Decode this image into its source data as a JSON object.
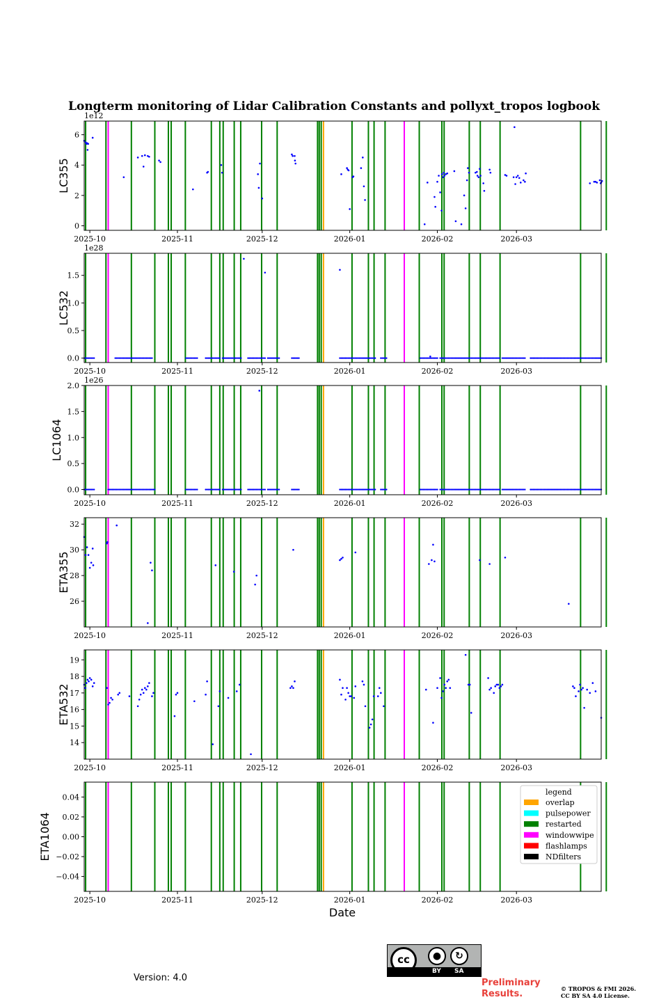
{
  "title": "Longterm monitoring of Lidar Calibration Constants and pollyxt_tropos logbook",
  "xlabel": "Date",
  "version_text": "Version: 4.0",
  "preliminary_text": "Preliminary\nResults.",
  "copyright_line1": "© TROPOS & FMI 2026.",
  "copyright_line2": "CC BY SA 4.0 License.",
  "license_badge": {
    "cc": "cc",
    "by": "BY",
    "sa": "SA"
  },
  "colors": {
    "points": "#0000ff",
    "overlap": "#ffa500",
    "pulsepower": "#00ffff",
    "restarted": "#008000",
    "windowwipe": "#ff00ff",
    "flashlamps": "#ff0000",
    "NDfilters": "#000000"
  },
  "legend": {
    "title": "legend",
    "entries": [
      {
        "label": "overlap",
        "color": "#ffa500"
      },
      {
        "label": "pulsepower",
        "color": "#00ffff"
      },
      {
        "label": "restarted",
        "color": "#008000"
      },
      {
        "label": "windowwipe",
        "color": "#ff00ff"
      },
      {
        "label": "flashlamps",
        "color": "#ff0000"
      },
      {
        "label": "NDfilters",
        "color": "#000000"
      }
    ]
  },
  "chart_data": {
    "type": "scatter",
    "x_range_days": [
      -2,
      181
    ],
    "x_origin": "2025-10-01",
    "x_ticks": [
      {
        "day": 0,
        "label": "2025-10"
      },
      {
        "day": 31,
        "label": "2025-11"
      },
      {
        "day": 61,
        "label": "2025-12"
      },
      {
        "day": 92,
        "label": "2026-01"
      },
      {
        "day": 123,
        "label": "2026-02"
      },
      {
        "day": 151,
        "label": "2026-03"
      }
    ],
    "events": {
      "restarted": [
        -1.5,
        5.7,
        14.7,
        23,
        27.8,
        28.8,
        33.8,
        43,
        46,
        47.2,
        51.1,
        53.4,
        60.8,
        66.3,
        80.6,
        81.2,
        81.9,
        92.8,
        98.6,
        100.6,
        104.5,
        116.6,
        124.6,
        125.4,
        134.3,
        138.2,
        145.2,
        173.7,
        182.8
      ],
      "windowwipe": [
        6.5,
        111.3
      ],
      "overlap": [
        82.7
      ],
      "flashlamps": [],
      "pulsepower": [],
      "NDfilters": []
    },
    "panels": [
      {
        "ylabel": "LC355",
        "exponent": "1e12",
        "ylim": [
          -0.3,
          6.9
        ],
        "yticks": [
          0,
          2,
          4,
          6
        ],
        "ytick_labels": [
          "0",
          "2",
          "4",
          "6"
        ],
        "points": [
          [
            -2,
            5.6
          ],
          [
            -1.5,
            5.5
          ],
          [
            -1.2,
            5.4
          ],
          [
            -1,
            5.45
          ],
          [
            -0.6,
            5.4
          ],
          [
            -0.8,
            5.0
          ],
          [
            1,
            5.8
          ],
          [
            12,
            3.2
          ],
          [
            17,
            4.5
          ],
          [
            18.5,
            4.6
          ],
          [
            19,
            3.9
          ],
          [
            19.5,
            4.65
          ],
          [
            20.5,
            4.6
          ],
          [
            21,
            4.55
          ],
          [
            24.5,
            4.3
          ],
          [
            25,
            4.2
          ],
          [
            36.5,
            2.4
          ],
          [
            41.5,
            3.5
          ],
          [
            41.8,
            3.55
          ],
          [
            46.5,
            4.0
          ],
          [
            46.8,
            3.5
          ],
          [
            59.5,
            3.4
          ],
          [
            59.8,
            2.5
          ],
          [
            60.2,
            4.1
          ],
          [
            61,
            1.8
          ],
          [
            71.5,
            4.7
          ],
          [
            71.8,
            4.6
          ],
          [
            72.5,
            4.6
          ],
          [
            72.6,
            4.3
          ],
          [
            72.8,
            4.1
          ],
          [
            89,
            3.4
          ],
          [
            91,
            3.8
          ],
          [
            91.3,
            3.7
          ],
          [
            91.6,
            3.65
          ],
          [
            92,
            1.1
          ],
          [
            93,
            3.2
          ],
          [
            93.3,
            3.25
          ],
          [
            96,
            3.8
          ],
          [
            96.6,
            4.5
          ],
          [
            97,
            2.6
          ],
          [
            97.4,
            1.7
          ],
          [
            118.5,
            0.1
          ],
          [
            119.5,
            2.85
          ],
          [
            122,
            1.9
          ],
          [
            122.3,
            1.25
          ],
          [
            123,
            2.9
          ],
          [
            123.5,
            3.3
          ],
          [
            124,
            2.2
          ],
          [
            124.5,
            1.0
          ],
          [
            124.7,
            3.4
          ],
          [
            125,
            3.2
          ],
          [
            125.3,
            3.5
          ],
          [
            125.5,
            3.3
          ],
          [
            126,
            3.4
          ],
          [
            126.5,
            3.45
          ],
          [
            129,
            3.6
          ],
          [
            129.5,
            0.3
          ],
          [
            131.5,
            0.1
          ],
          [
            132.5,
            2.0
          ],
          [
            133,
            1.15
          ],
          [
            133.5,
            3.0
          ],
          [
            133.8,
            3.8
          ],
          [
            134.2,
            3.5
          ],
          [
            136.5,
            3.5
          ],
          [
            137,
            3.55
          ],
          [
            137.2,
            3.3
          ],
          [
            137.6,
            3.2
          ],
          [
            138,
            3.75
          ],
          [
            138.3,
            3.3
          ],
          [
            139.3,
            2.8
          ],
          [
            139.6,
            2.3
          ],
          [
            141.5,
            3.7
          ],
          [
            141.8,
            3.5
          ],
          [
            147,
            3.35
          ],
          [
            147.5,
            3.3
          ],
          [
            150,
            3.2
          ],
          [
            150.3,
            6.5
          ],
          [
            150.6,
            2.75
          ],
          [
            151,
            3.2
          ],
          [
            151.5,
            3.3
          ],
          [
            152,
            3.15
          ],
          [
            152.5,
            2.85
          ],
          [
            153.5,
            3.0
          ],
          [
            154,
            2.9
          ],
          [
            154.3,
            3.45
          ],
          [
            177,
            2.8
          ],
          [
            178.5,
            2.9
          ],
          [
            179,
            2.9
          ],
          [
            179.5,
            2.85
          ],
          [
            180.5,
            3.0
          ],
          [
            180.8,
            2.8
          ],
          [
            181,
            2.85
          ],
          [
            181.3,
            2.95
          ]
        ]
      },
      {
        "ylabel": "LC532",
        "exponent": "1e28",
        "ylim": [
          -0.08,
          1.9
        ],
        "yticks": [
          0,
          0.5,
          1.0,
          1.5
        ],
        "ytick_labels": [
          "0.0",
          "0.5",
          "1.0",
          "1.5"
        ],
        "points": [
          [
            54.5,
            1.8
          ],
          [
            62,
            1.55
          ],
          [
            88.5,
            1.6
          ],
          [
            120.5,
            0.03
          ]
        ],
        "baseline_runs": [
          [
            -2,
            1.5
          ],
          [
            9,
            22
          ],
          [
            34,
            38
          ],
          [
            41,
            46
          ],
          [
            47,
            53.5
          ],
          [
            56,
            62
          ],
          [
            63,
            67
          ],
          [
            71.5,
            74
          ],
          [
            88.5,
            101
          ],
          [
            103,
            105
          ],
          [
            117,
            123
          ],
          [
            124,
            145
          ],
          [
            146,
            154
          ],
          [
            156,
            181
          ]
        ]
      },
      {
        "ylabel": "LC1064",
        "exponent": "1e26",
        "ylim": [
          -0.1,
          2.0
        ],
        "yticks": [
          0,
          0.5,
          1.0,
          1.5,
          2.0
        ],
        "ytick_labels": [
          "0.0",
          "0.5",
          "1.0",
          "1.5",
          "2.0"
        ],
        "points": [
          [
            60,
            1.9
          ]
        ],
        "baseline_runs": [
          [
            -2,
            1.5
          ],
          [
            6.5,
            23
          ],
          [
            34,
            38
          ],
          [
            41,
            46
          ],
          [
            47,
            53.5
          ],
          [
            56,
            62
          ],
          [
            63,
            67
          ],
          [
            71.5,
            74
          ],
          [
            88.5,
            101
          ],
          [
            103,
            105
          ],
          [
            117,
            123
          ],
          [
            124,
            145
          ],
          [
            146,
            154
          ],
          [
            156,
            181
          ]
        ]
      },
      {
        "ylabel": "ETA355",
        "exponent": "",
        "ylim": [
          24,
          32.5
        ],
        "yticks": [
          26,
          28,
          30,
          32
        ],
        "ytick_labels": [
          "26",
          "28",
          "30",
          "32"
        ],
        "points": [
          [
            -2,
            31
          ],
          [
            -1.5,
            29.6
          ],
          [
            -1,
            30.2
          ],
          [
            -0.5,
            29.6
          ],
          [
            0,
            28.6
          ],
          [
            0.5,
            29.0
          ],
          [
            1,
            30.1
          ],
          [
            1.2,
            28.8
          ],
          [
            6,
            30.5
          ],
          [
            6.2,
            30.6
          ],
          [
            9.5,
            31.9
          ],
          [
            20.5,
            24.3
          ],
          [
            21.5,
            29.0
          ],
          [
            22,
            28.4
          ],
          [
            44.5,
            28.8
          ],
          [
            51,
            28.3
          ],
          [
            58.5,
            27.3
          ],
          [
            59,
            28.0
          ],
          [
            72,
            30.0
          ],
          [
            88.5,
            29.2
          ],
          [
            89,
            29.3
          ],
          [
            89.5,
            29.4
          ],
          [
            94,
            29.8
          ],
          [
            120,
            28.9
          ],
          [
            121,
            29.2
          ],
          [
            121.5,
            30.4
          ],
          [
            122,
            29.1
          ],
          [
            138,
            29.2
          ],
          [
            141.5,
            28.9
          ],
          [
            147,
            29.4
          ],
          [
            169.5,
            25.8
          ]
        ]
      },
      {
        "ylabel": "ETA532",
        "exponent": "",
        "ylim": [
          13,
          19.6
        ],
        "yticks": [
          14,
          15,
          16,
          17,
          18,
          19
        ],
        "ytick_labels": [
          "14",
          "15",
          "16",
          "17",
          "18",
          "19"
        ],
        "points": [
          [
            -2,
            17.5
          ],
          [
            -1.6,
            17.3
          ],
          [
            -1.2,
            17.6
          ],
          [
            -0.8,
            17.8
          ],
          [
            -0.4,
            17.7
          ],
          [
            0,
            17.9
          ],
          [
            0.5,
            17.8
          ],
          [
            1,
            17.4
          ],
          [
            1.5,
            17.6
          ],
          [
            6,
            17.3
          ],
          [
            6.5,
            16.3
          ],
          [
            7,
            16.4
          ],
          [
            7.5,
            16.7
          ],
          [
            8,
            16.6
          ],
          [
            10,
            16.9
          ],
          [
            10.5,
            17.0
          ],
          [
            14,
            16.8
          ],
          [
            17,
            16.2
          ],
          [
            17.5,
            16.6
          ],
          [
            18,
            16.9
          ],
          [
            18.5,
            17.2
          ],
          [
            19,
            17.0
          ],
          [
            19.5,
            17.3
          ],
          [
            20,
            17.2
          ],
          [
            20.5,
            17.4
          ],
          [
            21,
            17.6
          ],
          [
            22,
            16.8
          ],
          [
            22.5,
            17.0
          ],
          [
            30,
            15.6
          ],
          [
            30.5,
            16.9
          ],
          [
            31,
            17.0
          ],
          [
            37,
            16.5
          ],
          [
            41,
            16.9
          ],
          [
            41.5,
            17.7
          ],
          [
            43.5,
            13.9
          ],
          [
            45.5,
            16.2
          ],
          [
            46,
            17.1
          ],
          [
            49,
            16.7
          ],
          [
            52,
            17.1
          ],
          [
            53,
            17.5
          ],
          [
            57,
            13.3
          ],
          [
            71,
            17.3
          ],
          [
            71.5,
            17.4
          ],
          [
            72,
            17.3
          ],
          [
            72.5,
            17.7
          ],
          [
            88.5,
            17.8
          ],
          [
            89,
            16.9
          ],
          [
            89.5,
            17.3
          ],
          [
            90.5,
            16.6
          ],
          [
            91,
            17.3
          ],
          [
            91.5,
            17.0
          ],
          [
            92,
            16.8
          ],
          [
            92.5,
            16.8
          ],
          [
            93.5,
            16.7
          ],
          [
            94,
            17.4
          ],
          [
            96.5,
            17.7
          ],
          [
            97,
            17.5
          ],
          [
            97.5,
            16.2
          ],
          [
            99,
            14.9
          ],
          [
            99.5,
            15.1
          ],
          [
            100,
            15.4
          ],
          [
            100.5,
            16.8
          ],
          [
            102,
            16.8
          ],
          [
            102.5,
            17.3
          ],
          [
            103,
            17.0
          ],
          [
            104,
            16.2
          ],
          [
            119,
            17.2
          ],
          [
            121.5,
            15.2
          ],
          [
            123,
            17.3
          ],
          [
            124,
            17.9
          ],
          [
            124.5,
            16.7
          ],
          [
            125,
            17.1
          ],
          [
            125.5,
            17.5
          ],
          [
            126,
            17.3
          ],
          [
            126.5,
            17.7
          ],
          [
            127,
            17.8
          ],
          [
            127.5,
            17.3
          ],
          [
            133,
            19.3
          ],
          [
            134,
            17.5
          ],
          [
            134.5,
            17.5
          ],
          [
            135,
            15.8
          ],
          [
            141,
            17.9
          ],
          [
            141.5,
            17.2
          ],
          [
            142,
            17.3
          ],
          [
            143,
            17.0
          ],
          [
            143.5,
            17.4
          ],
          [
            144,
            17.5
          ],
          [
            144.5,
            17.5
          ],
          [
            145,
            17.3
          ],
          [
            145.5,
            17.4
          ],
          [
            146,
            17.5
          ],
          [
            171,
            17.4
          ],
          [
            171.5,
            17.3
          ],
          [
            172,
            16.8
          ],
          [
            173,
            17.1
          ],
          [
            173.5,
            17.5
          ],
          [
            174,
            17.2
          ],
          [
            174.5,
            17.3
          ],
          [
            175,
            16.1
          ],
          [
            176,
            17.2
          ],
          [
            177,
            17.0
          ],
          [
            178,
            17.6
          ],
          [
            179,
            17.1
          ],
          [
            181,
            15.5
          ]
        ]
      },
      {
        "ylabel": "ETA1064",
        "exponent": "",
        "ylim": [
          -0.055,
          0.055
        ],
        "yticks": [
          -0.04,
          -0.02,
          0.0,
          0.02,
          0.04
        ],
        "ytick_labels": [
          "−0.04",
          "−0.02",
          "0.00",
          "0.02",
          "0.04"
        ],
        "points": [],
        "legend": true
      }
    ]
  }
}
